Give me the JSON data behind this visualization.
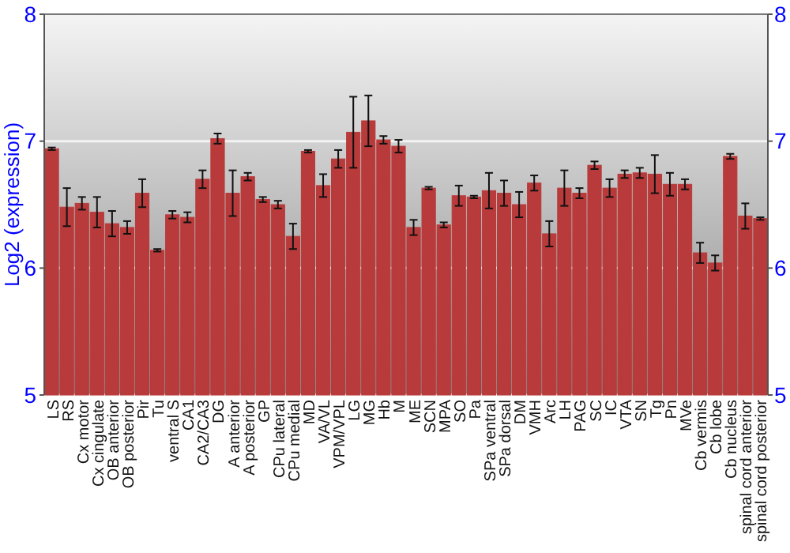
{
  "chart_data": {
    "type": "bar",
    "ylabel": "Log2 (expression)",
    "categories": [
      "LS",
      "RS",
      "Cx motor",
      "Cx cingulate",
      "OB anterior",
      "OB posterior",
      "Pir",
      "Tu",
      "ventral S",
      "CA1",
      "CA2/CA3",
      "DG",
      "A anterior",
      "A posterior",
      "GP",
      "CPu lateral",
      "CPu medial",
      "MD",
      "VA/VL",
      "VPM/VPL",
      "LG",
      "MG",
      "Hb",
      "M",
      "ME",
      "SCN",
      "MPA",
      "SO",
      "Pa",
      "SPa ventral",
      "SPa dorsal",
      "DM",
      "VMH",
      "Arc",
      "LH",
      "PAG",
      "SC",
      "IC",
      "VTA",
      "SN",
      "Tg",
      "Pn",
      "MVe",
      "Cb vermis",
      "Cb lobe",
      "Cb nucleus",
      "spinal cord anterior",
      "spinal cord posterior"
    ],
    "values": [
      6.94,
      6.48,
      6.51,
      6.44,
      6.35,
      6.32,
      6.59,
      6.14,
      6.42,
      6.4,
      6.7,
      7.02,
      6.59,
      6.72,
      6.54,
      6.5,
      6.25,
      6.92,
      6.65,
      6.86,
      7.07,
      7.16,
      7.01,
      6.96,
      6.32,
      6.63,
      6.34,
      6.57,
      6.56,
      6.61,
      6.59,
      6.5,
      6.67,
      6.27,
      6.63,
      6.59,
      6.81,
      6.63,
      6.74,
      6.75,
      6.74,
      6.66,
      6.66,
      6.12,
      6.04,
      6.88,
      6.41,
      6.39
    ],
    "errors": [
      0.01,
      0.15,
      0.05,
      0.12,
      0.1,
      0.05,
      0.11,
      0.01,
      0.03,
      0.04,
      0.07,
      0.04,
      0.18,
      0.03,
      0.02,
      0.03,
      0.1,
      0.01,
      0.09,
      0.07,
      0.28,
      0.2,
      0.03,
      0.05,
      0.06,
      0.01,
      0.02,
      0.08,
      0.01,
      0.14,
      0.1,
      0.1,
      0.06,
      0.1,
      0.14,
      0.04,
      0.03,
      0.07,
      0.03,
      0.04,
      0.15,
      0.09,
      0.04,
      0.08,
      0.06,
      0.02,
      0.1,
      0.01
    ],
    "color": "#b83a3a",
    "ylim": [
      5,
      8
    ],
    "yticks": [
      5,
      6,
      7,
      8
    ],
    "y2lim": [
      5,
      8
    ],
    "y2ticks": [
      5,
      6,
      7,
      8
    ],
    "grid": "y"
  }
}
